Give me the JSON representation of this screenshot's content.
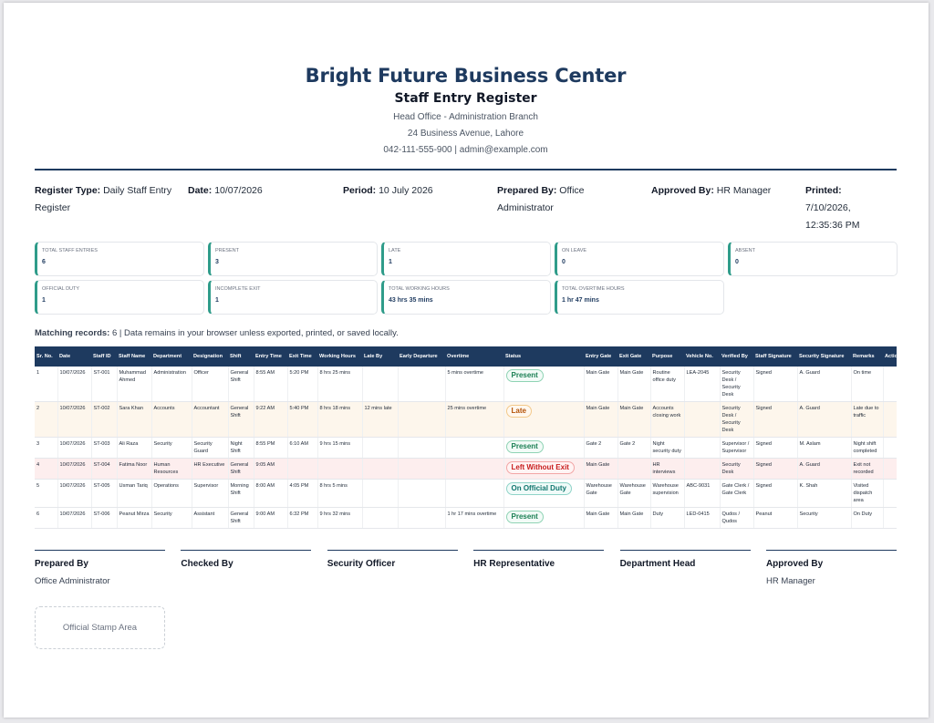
{
  "header": {
    "org_name": "Bright Future Business Center",
    "subtitle": "Staff Entry Register",
    "branch": "Head Office - Administration Branch",
    "address": "24 Business Avenue, Lahore",
    "contact": "042-111-555-900 | admin@example.com"
  },
  "meta": [
    {
      "label": "Register Type:",
      "value": "Daily Staff Entry Register"
    },
    {
      "label": "Date:",
      "value": "10/07/2026"
    },
    {
      "label": "Period:",
      "value": "10 July 2026"
    },
    {
      "label": "Prepared By:",
      "value": "Office Administrator"
    },
    {
      "label": "Approved By:",
      "value": "HR Manager"
    },
    {
      "label": "Printed:",
      "value": "7/10/2026, 12:35:36 PM"
    }
  ],
  "summary_cards": [
    {
      "label": "Total Staff Entries",
      "value": "6"
    },
    {
      "label": "Present",
      "value": "3"
    },
    {
      "label": "Late",
      "value": "1"
    },
    {
      "label": "On Leave",
      "value": "0"
    },
    {
      "label": "Absent",
      "value": "0"
    },
    {
      "label": "Official Duty",
      "value": "1"
    },
    {
      "label": "Incomplete Exit",
      "value": "1"
    },
    {
      "label": "Total Working Hours",
      "value": "43 hrs 35 mins"
    },
    {
      "label": "Total Overtime Hours",
      "value": "1 hr 47 mins"
    }
  ],
  "matching": {
    "label": "Matching records:",
    "text": "6 | Data remains in your browser unless exported, printed, or saved locally."
  },
  "table": {
    "columns": [
      "Sr. No.",
      "Date",
      "Staff ID",
      "Staff Name",
      "Department",
      "Designation",
      "Shift",
      "Entry Time",
      "Exit Time",
      "Working Hours",
      "Late By",
      "Early Departure",
      "Overtime",
      "Status",
      "Entry Gate",
      "Exit Gate",
      "Purpose",
      "Vehicle No.",
      "Verified By",
      "Staff Signature",
      "Security Signature",
      "Remarks",
      "Actions"
    ],
    "rows": [
      {
        "kind": "present",
        "cells": [
          "1",
          "10/07/2026",
          "ST-001",
          "Muhammad Ahmed",
          "Administration",
          "Officer",
          "General Shift",
          "8:55 AM",
          "5:20 PM",
          "8 hrs 25 mins",
          "",
          "",
          "5 mins overtime",
          "Present",
          "Main Gate",
          "Main Gate",
          "Routine office duty",
          "LEA-2045",
          "Security Desk / Security Desk",
          "Signed",
          "A. Guard",
          "On time",
          ""
        ]
      },
      {
        "kind": "late",
        "cells": [
          "2",
          "10/07/2026",
          "ST-002",
          "Sara Khan",
          "Accounts",
          "Accountant",
          "General Shift",
          "9:22 AM",
          "5:40 PM",
          "8 hrs 18 mins",
          "12 mins late",
          "",
          "25 mins overtime",
          "Late",
          "Main Gate",
          "Main Gate",
          "Accounts closing work",
          "",
          "Security Desk / Security Desk",
          "Signed",
          "A. Guard",
          "Late due to traffic",
          ""
        ]
      },
      {
        "kind": "present",
        "cells": [
          "3",
          "10/07/2026",
          "ST-003",
          "Ali Raza",
          "Security",
          "Security Guard",
          "Night Shift",
          "8:55 PM",
          "6:10 AM",
          "9 hrs 15 mins",
          "",
          "",
          "",
          "Present",
          "Gate 2",
          "Gate 2",
          "Night security duty",
          "",
          "Supervisor / Supervisor",
          "Signed",
          "M. Aslam",
          "Night shift completed",
          ""
        ]
      },
      {
        "kind": "left",
        "cells": [
          "4",
          "10/07/2026",
          "ST-004",
          "Fatima Noor",
          "Human Resources",
          "HR Executive",
          "General Shift",
          "9:05 AM",
          "",
          "",
          "",
          "",
          "",
          "Left Without Exit",
          "Main Gate",
          "",
          "HR interviews",
          "",
          "Security Desk",
          "Signed",
          "A. Guard",
          "Exit not recorded",
          ""
        ]
      },
      {
        "kind": "duty",
        "cells": [
          "5",
          "10/07/2026",
          "ST-005",
          "Usman Tariq",
          "Operations",
          "Supervisor",
          "Morning Shift",
          "8:00 AM",
          "4:05 PM",
          "8 hrs 5 mins",
          "",
          "",
          "",
          "On Official Duty",
          "Warehouse Gate",
          "Warehouse Gate",
          "Warehouse supervision",
          "ABC-9031",
          "Gate Clerk / Gate Clerk",
          "Signed",
          "K. Shah",
          "Visited dispatch area",
          ""
        ]
      },
      {
        "kind": "present",
        "cells": [
          "6",
          "10/07/2026",
          "ST-006",
          "Peanut Mirza",
          "Security",
          "Assistant",
          "General Shift",
          "9:00 AM",
          "6:32 PM",
          "9 hrs 32 mins",
          "",
          "",
          "1 hr 17 mins overtime",
          "Present",
          "Main Gate",
          "Main Gate",
          "Duty",
          "LED-0415",
          "Qudos / Qudos",
          "Peanut",
          "Security",
          "On Duty",
          ""
        ]
      }
    ]
  },
  "signatures": [
    {
      "title": "Prepared By",
      "name": "Office Administrator"
    },
    {
      "title": "Checked By",
      "name": ""
    },
    {
      "title": "Security Officer",
      "name": ""
    },
    {
      "title": "HR Representative",
      "name": ""
    },
    {
      "title": "Department Head",
      "name": ""
    },
    {
      "title": "Approved By",
      "name": "HR Manager"
    }
  ],
  "stamp_label": "Official Stamp Area",
  "colors": {
    "accent": "#1e3a5f",
    "card_border": "#2f9c8a"
  }
}
